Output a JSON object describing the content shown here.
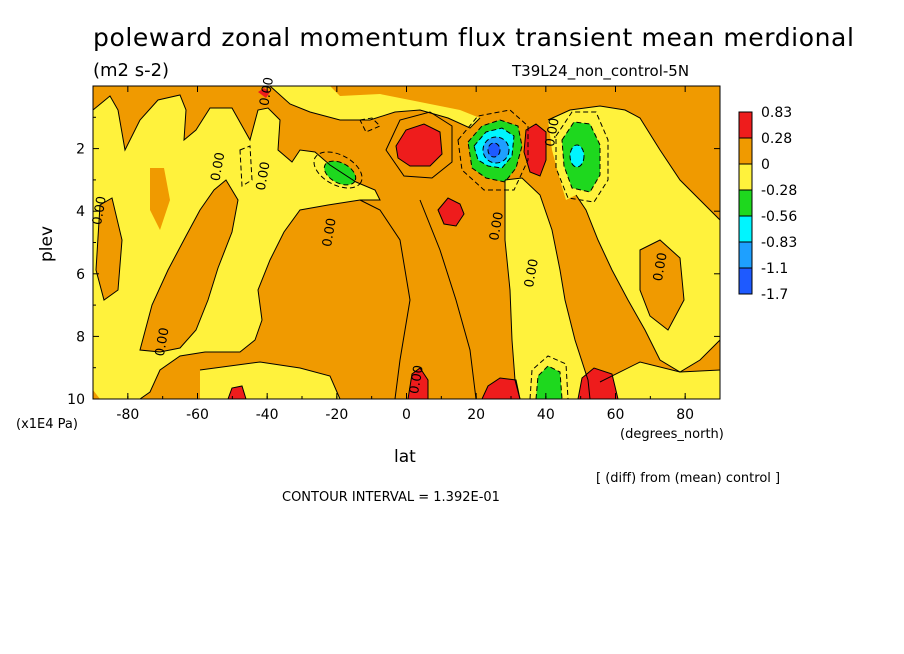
{
  "chart_data": {
    "type": "heatmap",
    "title": "poleward zonal momentum flux transient mean merdional",
    "units": "(m2 s-2)",
    "subtitle": "T39L24_non_control-5N",
    "xlabel": "lat",
    "xunits": "(degrees_north)",
    "ylabel": "plev",
    "yunits": "(x1E4 Pa)",
    "xlim": [
      -90,
      90
    ],
    "ylim": [
      10,
      0
    ],
    "xticks": [
      -80,
      -60,
      -40,
      -20,
      0,
      20,
      40,
      60,
      80
    ],
    "xtick_labels": [
      "-80",
      "-60",
      "-40",
      "-20",
      "0",
      "20",
      "40",
      "60",
      "80"
    ],
    "yticks": [
      2,
      4,
      6,
      8,
      10
    ],
    "ytick_labels": [
      "2",
      "4",
      "6",
      "8",
      "10"
    ],
    "colorbar": {
      "labels": [
        "0.83",
        "0.28",
        "0",
        "-0.28",
        "-0.56",
        "-0.83",
        "-1.1",
        "-1.7"
      ],
      "colors": [
        "#ee1c1c",
        "#f09a00",
        "#fff23c",
        "#1ed81e",
        "#00f5ff",
        "#1ea0ff",
        "#1e5aff"
      ]
    },
    "contour_labels": [
      {
        "text": "0.00",
        "x": -87,
        "y": 4.0
      },
      {
        "text": "0.00",
        "x": -53,
        "y": 2.6
      },
      {
        "text": "0.00",
        "x": -40,
        "y": 2.9
      },
      {
        "text": "0.00",
        "x": -21,
        "y": 4.7
      },
      {
        "text": "0.00",
        "x": -69,
        "y": 8.2
      },
      {
        "text": "0.00",
        "x": 4,
        "y": 9.4
      },
      {
        "text": "0.00",
        "x": 27,
        "y": 4.5
      },
      {
        "text": "0.00",
        "x": 37,
        "y": 6.0
      },
      {
        "text": "0.00",
        "x": 43,
        "y": 1.5
      },
      {
        "text": "0.00",
        "x": 74,
        "y": 5.8
      },
      {
        "text": "0.00",
        "x": -39,
        "y": 0.2
      }
    ],
    "features": [
      {
        "kind": "positive-max",
        "x": 5,
        "y": 2.0,
        "value_range": "0.28 to 0.83"
      },
      {
        "kind": "positive-max",
        "x": 13,
        "y": 3.9,
        "value_range": "0.28 to 0.83"
      },
      {
        "kind": "positive-max",
        "x": 36,
        "y": 2.0,
        "value_range": "0.28 to 0.83"
      },
      {
        "kind": "negative-min",
        "x": 25,
        "y": 2.1,
        "value_range": "-1.7 to -1.1"
      },
      {
        "kind": "negative-min",
        "x": 48,
        "y": 2.5,
        "value_range": "-0.83 to -0.56"
      },
      {
        "kind": "negative-min",
        "x": -18,
        "y": 2.9,
        "value_range": "-0.56 to -0.28"
      },
      {
        "kind": "negative-min",
        "x": 40,
        "y": 9.6,
        "value_range": "-0.56 to -0.28"
      },
      {
        "kind": "positive-max",
        "x": 28,
        "y": 9.7,
        "value_range": "0.28 to 0.83"
      },
      {
        "kind": "positive-max",
        "x": 53,
        "y": 9.6,
        "value_range": "0.28 to 0.83"
      },
      {
        "kind": "positive-max",
        "x": 6,
        "y": 9.6,
        "value_range": "0.28 to 0.83"
      },
      {
        "kind": "positive-max",
        "x": -48,
        "y": 9.8,
        "value_range": "0.28 to 0.83"
      }
    ]
  },
  "footer": {
    "diff_note": "[ (diff) from (mean) control ]",
    "contour_interval": "CONTOUR INTERVAL = 1.392E-01"
  }
}
